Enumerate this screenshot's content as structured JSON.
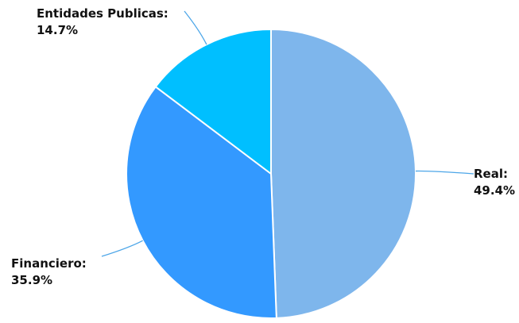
{
  "chart_data": {
    "type": "pie",
    "title": "",
    "slices": [
      {
        "label": "Real",
        "value": 49.4,
        "display": "49.4%",
        "color": "#7EB6EC"
      },
      {
        "label": "Financiero",
        "value": 35.9,
        "display": "35.9%",
        "color": "#3399FF"
      },
      {
        "label": "Entidades Publicas",
        "value": 14.7,
        "display": "14.7%",
        "color": "#00BFFF"
      }
    ],
    "start_angle_deg": 0,
    "direction": "clockwise",
    "slice_border_color": "#ffffff",
    "leader_line_color": "#4DA6E8",
    "label_separator": ":",
    "legend": "none"
  }
}
